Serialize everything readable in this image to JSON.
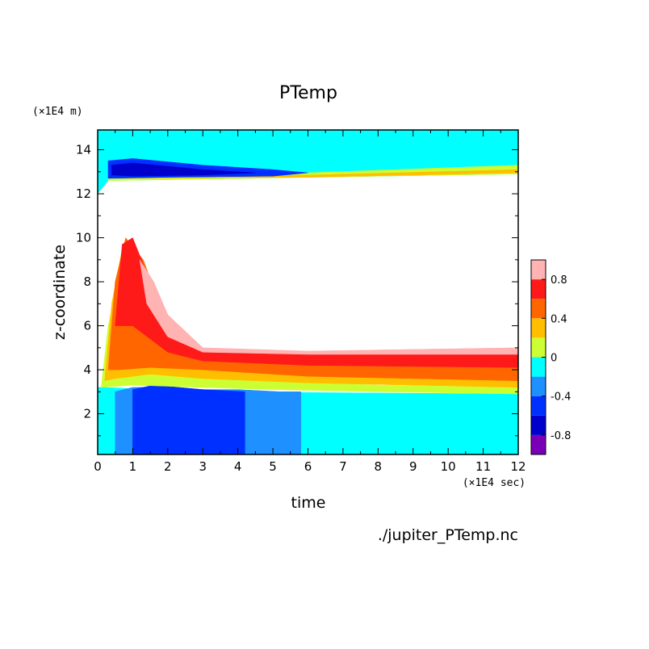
{
  "chart_data": {
    "type": "heatmap",
    "title": "PTemp",
    "xlabel": "time",
    "ylabel": "z-coordinate",
    "x_unit": "(×1E4 sec)",
    "y_unit": "(×1E4 m)",
    "xlim": [
      0,
      12
    ],
    "ylim": [
      0.15,
      14.9
    ],
    "x_ticks": [
      "0",
      "1",
      "2",
      "3",
      "4",
      "5",
      "6",
      "7",
      "8",
      "9",
      "10",
      "11",
      "12"
    ],
    "y_ticks": [
      "2",
      "4",
      "6",
      "8",
      "10",
      "12",
      "14"
    ],
    "y_tick_values": [
      2,
      4,
      6,
      8,
      10,
      12,
      14
    ],
    "colorbar": {
      "levels": [
        -1.0,
        -0.8,
        -0.6,
        -0.4,
        -0.2,
        0.0,
        0.2,
        0.4,
        0.6,
        0.8,
        1.0
      ],
      "colors": [
        "#7a00b8",
        "#0000cc",
        "#0030ff",
        "#1e90ff",
        "#00ffff",
        "#ccff33",
        "#ffbf00",
        "#ff6600",
        "#ff1a1a",
        "#ffb3b3"
      ],
      "tick_labels": [
        "-0.8",
        "-0.4",
        "0",
        "0.4",
        "0.8"
      ],
      "tick_values": [
        -0.8,
        -0.4,
        0.0,
        0.4,
        0.8
      ]
    },
    "bands": [
      {
        "level": -0.2,
        "color": "#00ffff",
        "points": [
          [
            0,
            0.15
          ],
          [
            12,
            0.15
          ],
          [
            12,
            2.9
          ],
          [
            3,
            3.0
          ],
          [
            0.2,
            3.2
          ],
          [
            0,
            3.2
          ]
        ]
      },
      {
        "level": -0.4,
        "color": "#1e90ff",
        "points": [
          [
            0.5,
            0.15
          ],
          [
            5.8,
            0.15
          ],
          [
            5.8,
            3.0
          ],
          [
            5.2,
            3.0
          ],
          [
            4.0,
            3.1
          ],
          [
            3.0,
            3.1
          ],
          [
            2.0,
            3.2
          ],
          [
            1.0,
            3.2
          ],
          [
            0.5,
            3.0
          ]
        ]
      },
      {
        "level": -0.6,
        "color": "#0030ff",
        "points": [
          [
            1.0,
            0.15
          ],
          [
            4.2,
            0.15
          ],
          [
            4.2,
            3.0
          ],
          [
            3.0,
            3.1
          ],
          [
            1.6,
            3.3
          ],
          [
            1.0,
            3.1
          ]
        ]
      },
      {
        "level": 0.0,
        "color": "#ccff33",
        "points": [
          [
            0.1,
            3.2
          ],
          [
            0.3,
            6.0
          ],
          [
            0.7,
            9.0
          ],
          [
            1.2,
            6.0
          ],
          [
            2.0,
            4.2
          ],
          [
            3.0,
            3.7
          ],
          [
            5.0,
            3.5
          ],
          [
            8.0,
            3.3
          ],
          [
            12,
            3.2
          ],
          [
            12,
            2.9
          ],
          [
            8.0,
            3.0
          ],
          [
            5.0,
            3.1
          ],
          [
            3.0,
            3.2
          ],
          [
            1.0,
            3.3
          ]
        ]
      },
      {
        "level": 0.2,
        "color": "#ffbf00",
        "points": [
          [
            0.2,
            3.5
          ],
          [
            0.4,
            7.0
          ],
          [
            0.7,
            9.5
          ],
          [
            1.2,
            7.0
          ],
          [
            2.0,
            4.5
          ],
          [
            3.0,
            4.0
          ],
          [
            6.0,
            3.7
          ],
          [
            12,
            3.5
          ],
          [
            12,
            3.2
          ],
          [
            6.0,
            3.4
          ],
          [
            3.0,
            3.6
          ],
          [
            1.5,
            3.8
          ],
          [
            0.5,
            3.6
          ]
        ]
      },
      {
        "level": 0.4,
        "color": "#ff6600",
        "points": [
          [
            0.3,
            4.0
          ],
          [
            0.5,
            8.0
          ],
          [
            0.8,
            10.0
          ],
          [
            1.3,
            9.0
          ],
          [
            2.0,
            6.0
          ],
          [
            3.0,
            4.5
          ],
          [
            6.0,
            4.2
          ],
          [
            12,
            4.1
          ],
          [
            12,
            3.5
          ],
          [
            6.0,
            3.7
          ],
          [
            3.0,
            4.0
          ],
          [
            1.5,
            4.1
          ],
          [
            0.6,
            4.0
          ]
        ]
      },
      {
        "level": 0.6,
        "color": "#ff1a1a",
        "points": [
          [
            0.5,
            6.0
          ],
          [
            0.7,
            9.7
          ],
          [
            1.0,
            10.0
          ],
          [
            1.5,
            8.0
          ],
          [
            2.0,
            6.5
          ],
          [
            3.0,
            4.9
          ],
          [
            6.0,
            4.7
          ],
          [
            12,
            4.7
          ],
          [
            12,
            4.1
          ],
          [
            6.0,
            4.2
          ],
          [
            3.0,
            4.4
          ],
          [
            2.0,
            4.8
          ],
          [
            1.0,
            6.0
          ]
        ]
      },
      {
        "level": 0.8,
        "color": "#ffb3b3",
        "points": [
          [
            1.2,
            9.0
          ],
          [
            1.6,
            8.0
          ],
          [
            2.0,
            6.5
          ],
          [
            3.0,
            5.0
          ],
          [
            6.0,
            4.85
          ],
          [
            12,
            5.0
          ],
          [
            12,
            4.7
          ],
          [
            6.0,
            4.7
          ],
          [
            3.0,
            4.8
          ],
          [
            2.0,
            5.5
          ],
          [
            1.4,
            7.0
          ]
        ]
      }
    ],
    "top_layer": [
      {
        "level": -0.2,
        "color": "#00ffff",
        "points": [
          [
            0,
            14.9
          ],
          [
            12,
            14.9
          ],
          [
            12,
            12.9
          ],
          [
            0.3,
            12.6
          ],
          [
            0,
            12.0
          ]
        ]
      },
      {
        "level": 0.0,
        "color": "#ccff33",
        "points": [
          [
            0.3,
            12.9
          ],
          [
            6.0,
            12.95
          ],
          [
            12,
            13.3
          ],
          [
            12,
            12.9
          ],
          [
            6.0,
            12.75
          ],
          [
            0.3,
            12.6
          ]
        ]
      },
      {
        "level": 0.2,
        "color": "#ffbf00",
        "points": [
          [
            0.5,
            12.8
          ],
          [
            6.0,
            12.85
          ],
          [
            12,
            13.1
          ],
          [
            12,
            12.95
          ],
          [
            6.0,
            12.75
          ],
          [
            0.5,
            12.7
          ]
        ]
      },
      {
        "level": -0.6,
        "color": "#0030ff",
        "points": [
          [
            0.3,
            13.5
          ],
          [
            1.0,
            13.6
          ],
          [
            3.0,
            13.3
          ],
          [
            5.0,
            13.1
          ],
          [
            6.0,
            12.95
          ],
          [
            5.0,
            12.8
          ],
          [
            2.0,
            12.75
          ],
          [
            0.3,
            12.7
          ]
        ]
      },
      {
        "level": -0.8,
        "color": "#0000cc",
        "points": [
          [
            0.4,
            13.3
          ],
          [
            1.0,
            13.4
          ],
          [
            3.0,
            13.1
          ],
          [
            4.5,
            12.95
          ],
          [
            3.0,
            12.85
          ],
          [
            1.0,
            12.8
          ],
          [
            0.4,
            12.85
          ]
        ]
      }
    ]
  },
  "source_file": "./jupiter_PTemp.nc"
}
